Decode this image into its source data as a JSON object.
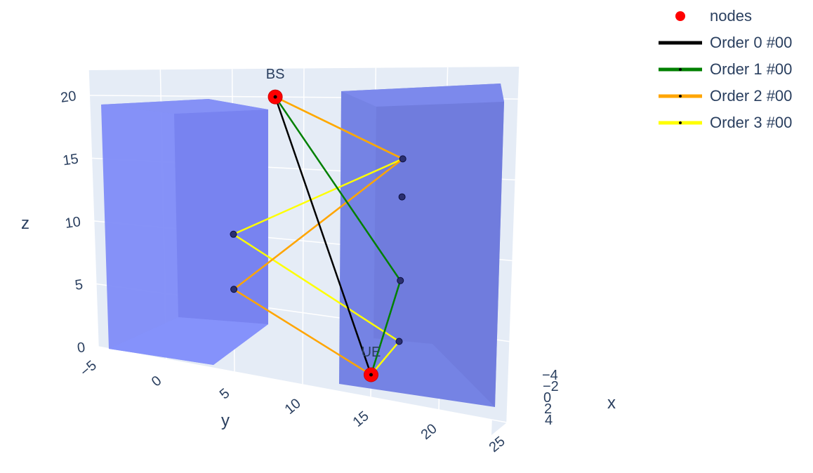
{
  "chart_data": {
    "type": "scatter3d",
    "axes": {
      "x": {
        "title": "x",
        "ticks": [
          "-4",
          "-2",
          "0",
          "2",
          "4"
        ]
      },
      "y": {
        "title": "y",
        "ticks": [
          "-5",
          "0",
          "5",
          "10",
          "15",
          "20",
          "25"
        ]
      },
      "z": {
        "title": "z",
        "ticks": [
          "0",
          "5",
          "10",
          "15",
          "20"
        ]
      }
    },
    "nodes": [
      {
        "label": "BS",
        "y": 8,
        "z": 20
      },
      {
        "label": "UE",
        "y": 15,
        "z": 1.5
      }
    ],
    "reflection_points": [
      {
        "wall": "left",
        "y": 5,
        "z": 10
      },
      {
        "wall": "left",
        "y": 5,
        "z": 6
      },
      {
        "wall": "right",
        "y": 17,
        "z": 16
      },
      {
        "wall": "right",
        "y": 17,
        "z": 13.5
      },
      {
        "wall": "right",
        "y": 17,
        "z": 8
      },
      {
        "wall": "right",
        "y": 17,
        "z": 4
      }
    ],
    "series": [
      {
        "name": "nodes",
        "color": "#ff0000",
        "kind": "markers"
      },
      {
        "name": "Order 0 #00",
        "color": "#000000",
        "kind": "lines",
        "path": [
          [
            8,
            20
          ],
          [
            15,
            1.5
          ]
        ]
      },
      {
        "name": "Order 1 #00",
        "color": "#008000",
        "kind": "lines",
        "path": [
          [
            8,
            20
          ],
          [
            17,
            8
          ],
          [
            15,
            1.5
          ]
        ]
      },
      {
        "name": "Order 2 #00",
        "color": "#ffa500",
        "kind": "lines",
        "path": [
          [
            8,
            20
          ],
          [
            17,
            16
          ],
          [
            5,
            6
          ],
          [
            15,
            1.5
          ]
        ]
      },
      {
        "name": "Order 3 #00",
        "color": "#ffff00",
        "kind": "lines",
        "path": [
          [
            8,
            20
          ],
          [
            17,
            16
          ],
          [
            5,
            10
          ],
          [
            17,
            4
          ],
          [
            15,
            1.5
          ]
        ]
      }
    ],
    "buildings": {
      "color": "#6d79f2"
    },
    "legend_position": "top-right"
  },
  "legend": [
    {
      "name": "nodes",
      "color": "#ff0000",
      "kind": "markers"
    },
    {
      "name": "Order 0 #00",
      "color": "#000000",
      "kind": "lines"
    },
    {
      "name": "Order 1 #00",
      "color": "#008000",
      "kind": "lines"
    },
    {
      "name": "Order 2 #00",
      "color": "#ffa500",
      "kind": "lines"
    },
    {
      "name": "Order 3 #00",
      "color": "#ffff00",
      "kind": "lines"
    }
  ]
}
